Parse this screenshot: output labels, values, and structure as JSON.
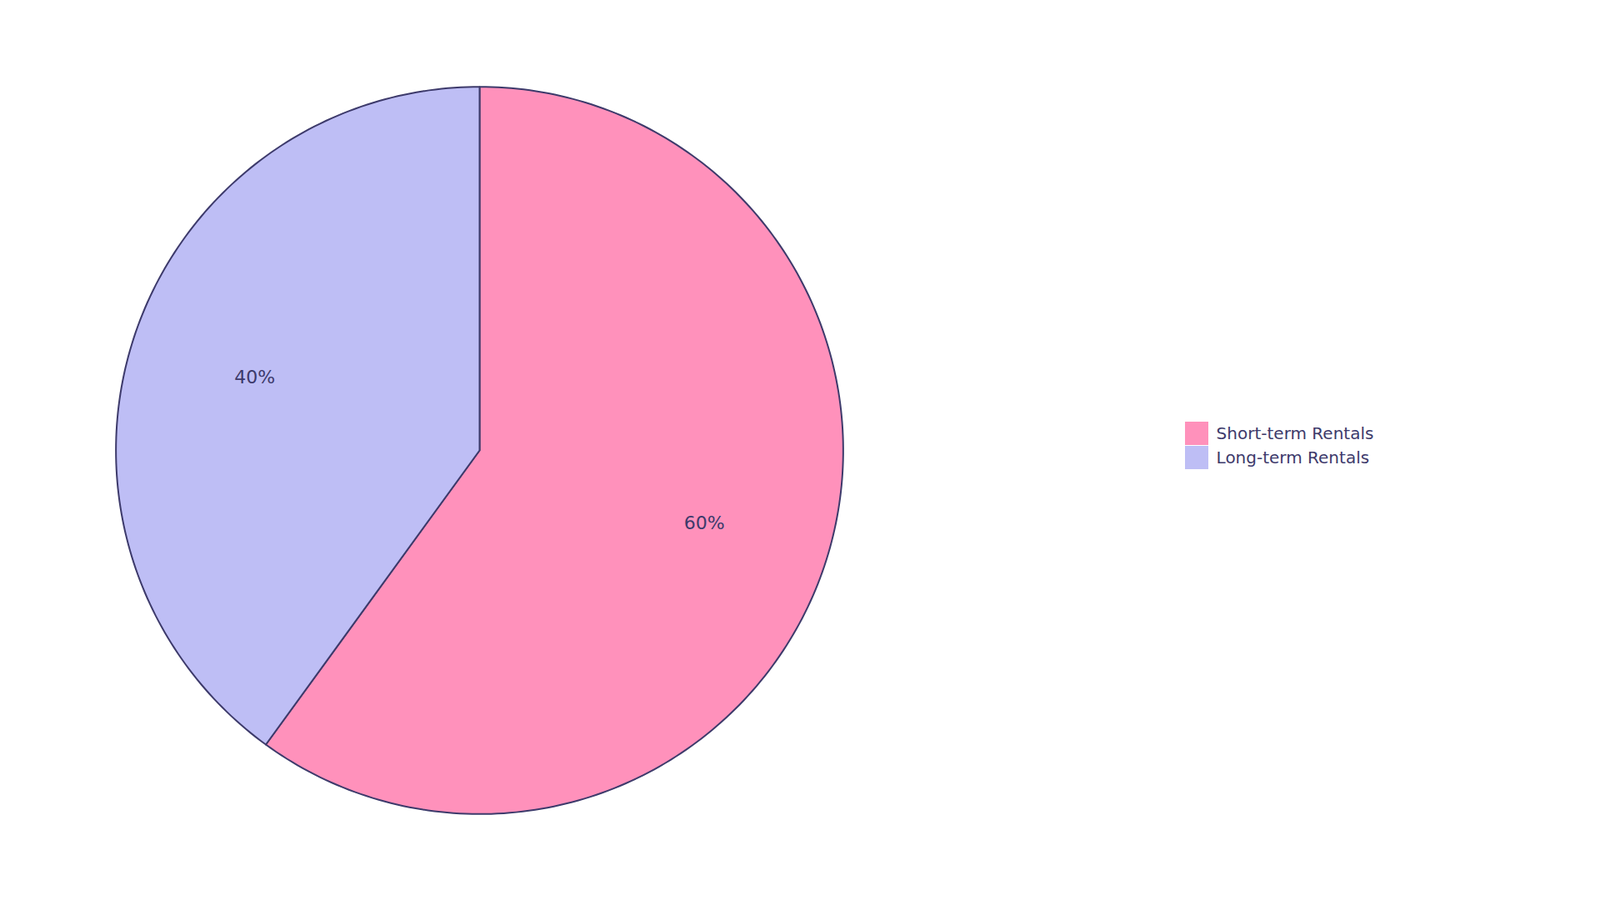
{
  "chart_data": {
    "type": "pie",
    "categories": [
      "Short-term Rentals",
      "Long-term Rentals"
    ],
    "values": [
      60,
      40
    ],
    "value_labels": [
      "60%",
      "40%"
    ],
    "colors": [
      "#FF91BB",
      "#BEBEF5"
    ],
    "data_labels": true,
    "legend": "right"
  }
}
